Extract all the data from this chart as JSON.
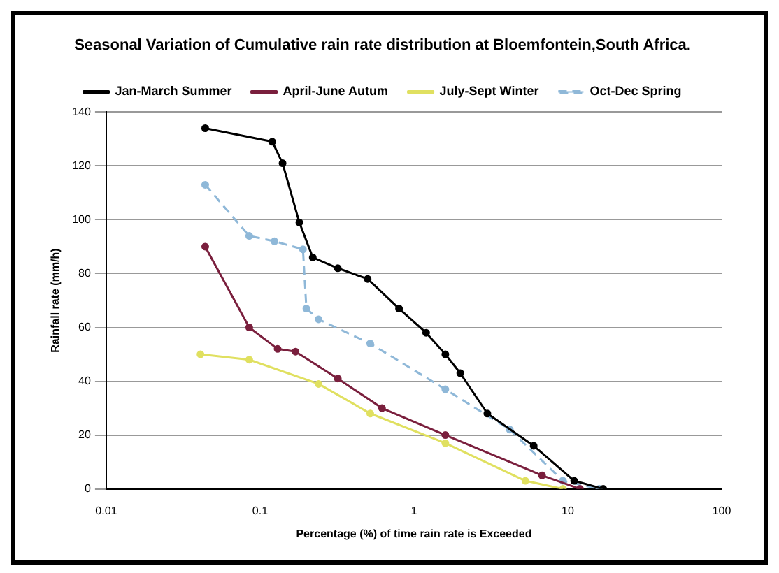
{
  "chart_data": {
    "type": "line",
    "title": "Seasonal Variation of Cumulative rain rate distribution at Bloemfontein,South Africa.",
    "xlabel": "Percentage (%) of time rain rate is Exceeded",
    "ylabel": "Rainfall rate (mm/h)",
    "log": "x",
    "xlim": [
      0.01,
      100
    ],
    "xticks": [
      0.01,
      0.1,
      1,
      10,
      100
    ],
    "ylim": [
      0,
      140
    ],
    "yticks": [
      0,
      20,
      40,
      60,
      80,
      100,
      120,
      140
    ],
    "grid": "y",
    "legend": "top",
    "marker": "circle",
    "series": [
      {
        "name": "Jan-March Summer",
        "color": "#000000",
        "x": [
          0.044,
          0.12,
          0.14,
          0.18,
          0.22,
          0.32,
          0.5,
          0.8,
          1.2,
          1.6,
          2,
          3,
          6,
          11,
          17
        ],
        "values": [
          134,
          129,
          121,
          99,
          86,
          82,
          78,
          67,
          58,
          50,
          43,
          28,
          16,
          3,
          0
        ]
      },
      {
        "name": "April-June Autum",
        "color": "#7a1f3d",
        "x": [
          0.044,
          0.085,
          0.13,
          0.17,
          0.32,
          0.62,
          1.6,
          6.8,
          12
        ],
        "values": [
          90,
          60,
          52,
          51,
          41,
          30,
          20,
          5,
          0
        ]
      },
      {
        "name": "July-Sept Winter",
        "color": "#e0e060",
        "x": [
          0.041,
          0.085,
          0.24,
          0.52,
          1.6,
          5.3,
          9.3
        ],
        "values": [
          50,
          48,
          39,
          28,
          17,
          3,
          0
        ]
      },
      {
        "name": "Oct-Dec Spring",
        "color": "#8fb8d8",
        "line_style": "dashed",
        "x": [
          0.044,
          0.085,
          0.124,
          0.19,
          0.2,
          0.24,
          0.52,
          1.6,
          4.2,
          9.3,
          16
        ],
        "values": [
          113,
          94,
          92,
          89,
          67,
          63,
          54,
          37,
          22,
          3,
          0
        ]
      }
    ]
  }
}
